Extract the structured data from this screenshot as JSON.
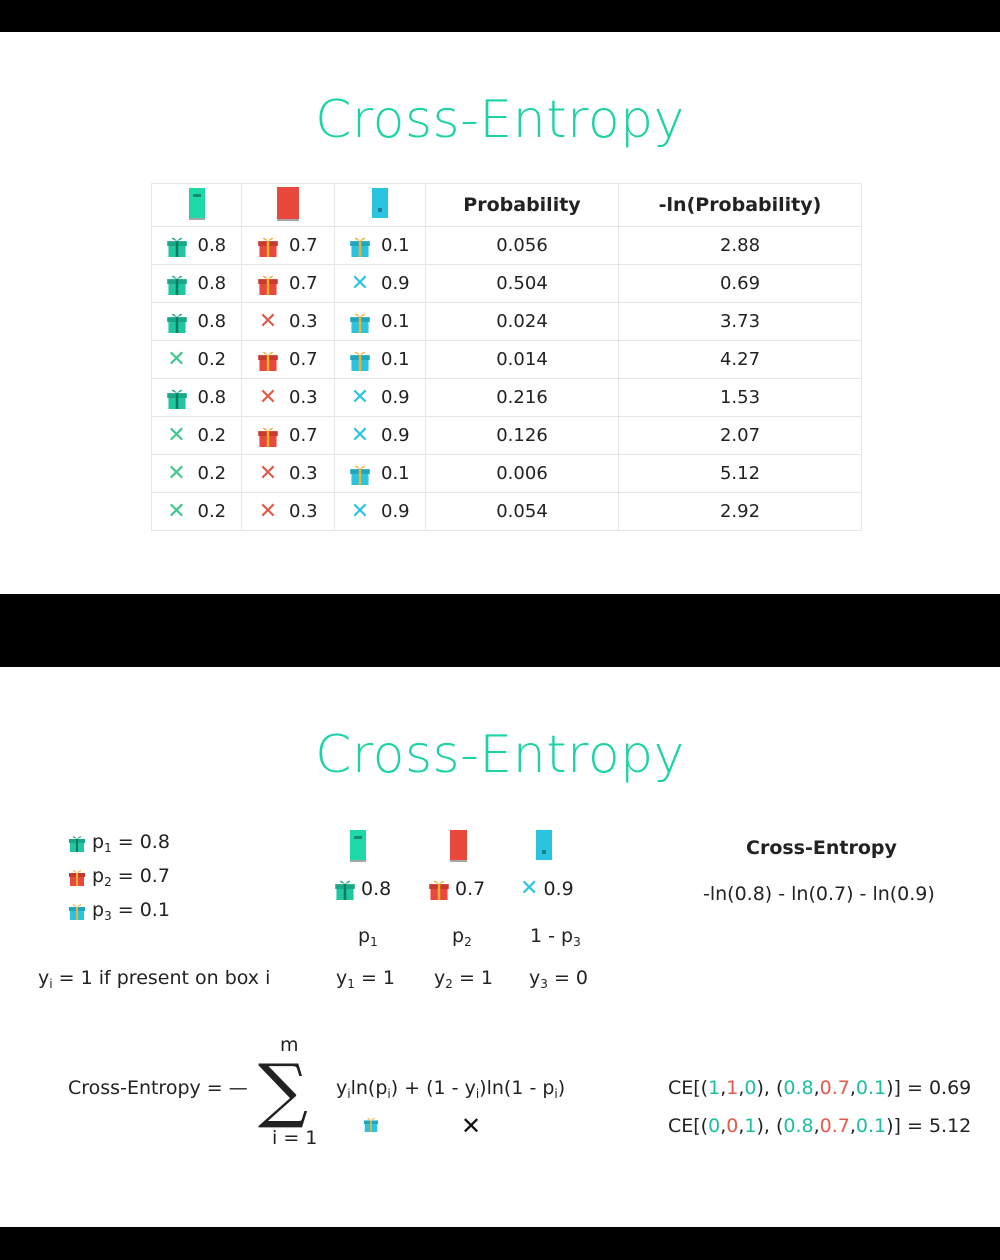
{
  "slide1": {
    "title": "Cross-Entropy",
    "headers": {
      "prob": "Probability",
      "ln": "-ln(Probability)"
    },
    "rows": [
      {
        "a": "0.8",
        "a_icon": "gift-icon",
        "b": "0.7",
        "b_icon": "gift-icon",
        "c": "0.1",
        "c_icon": "gift-icon",
        "prob": "0.056",
        "ln": "2.88"
      },
      {
        "a": "0.8",
        "a_icon": "gift-icon",
        "b": "0.7",
        "b_icon": "gift-icon",
        "c": "0.9",
        "c_icon": "x-icon",
        "prob": "0.504",
        "ln": "0.69"
      },
      {
        "a": "0.8",
        "a_icon": "gift-icon",
        "b": "0.3",
        "b_icon": "x-icon",
        "c": "0.1",
        "c_icon": "gift-icon",
        "prob": "0.024",
        "ln": "3.73"
      },
      {
        "a": "0.2",
        "a_icon": "x-icon",
        "b": "0.7",
        "b_icon": "gift-icon",
        "c": "0.1",
        "c_icon": "gift-icon",
        "prob": "0.014",
        "ln": "4.27"
      },
      {
        "a": "0.8",
        "a_icon": "gift-icon",
        "b": "0.3",
        "b_icon": "x-icon",
        "c": "0.9",
        "c_icon": "x-icon",
        "prob": "0.216",
        "ln": "1.53"
      },
      {
        "a": "0.2",
        "a_icon": "x-icon",
        "b": "0.7",
        "b_icon": "gift-icon",
        "c": "0.9",
        "c_icon": "x-icon",
        "prob": "0.126",
        "ln": "2.07"
      },
      {
        "a": "0.2",
        "a_icon": "x-icon",
        "b": "0.3",
        "b_icon": "x-icon",
        "c": "0.1",
        "c_icon": "gift-icon",
        "prob": "0.006",
        "ln": "5.12"
      },
      {
        "a": "0.2",
        "a_icon": "x-icon",
        "b": "0.3",
        "b_icon": "x-icon",
        "c": "0.9",
        "c_icon": "x-icon",
        "prob": "0.054",
        "ln": "2.92"
      }
    ]
  },
  "slide2": {
    "title": "Cross-Entropy",
    "p1_label": "p",
    "p1_sub": "1",
    "p1_value": "= 0.8",
    "p2_label": "p",
    "p2_sub": "2",
    "p2_value": "= 0.7",
    "p3_label": "p",
    "p3_sub": "3",
    "p3_value": "= 0.1",
    "yi_def": {
      "y": "y",
      "sub": "i",
      "rest": "= 1 if present on box i"
    },
    "door_values": [
      "0.8",
      "0.7",
      "0.9"
    ],
    "p_labels": [
      {
        "t": "p",
        "s": "1"
      },
      {
        "t": "p",
        "s": "2"
      },
      {
        "pre": "1 - p",
        "s": "3"
      }
    ],
    "y_labels": [
      {
        "t": "y",
        "s": "1",
        "v": "= 1"
      },
      {
        "t": "y",
        "s": "2",
        "v": "= 1"
      },
      {
        "t": "y",
        "s": "3",
        "v": "= 0"
      }
    ],
    "ce_heading": "Cross-Entropy",
    "ce_expr": "-ln(0.8) - ln(0.7) - ln(0.9)",
    "formula_lhs": "Cross-Entropy = —",
    "sigma_top": "m",
    "sigma_bottom": "i = 1",
    "ex1": {
      "pre": "CE[(",
      "y": [
        "1",
        "1",
        "0"
      ],
      "mid": "), (",
      "p": [
        "0.8",
        "0.7",
        "0.1"
      ],
      "post": ")] = 0.69"
    },
    "ex2": {
      "pre": "CE[(",
      "y": [
        "0",
        "0",
        "1"
      ],
      "mid": "), (",
      "p": [
        "0.8",
        "0.7",
        "0.1"
      ],
      "post": ")] = 5.12"
    }
  },
  "colors": {
    "title": "#1bd3a4",
    "door1": "#1fd8a8",
    "door2": "#e8493c",
    "door3": "#2bc4e0",
    "x": "#e45a4a",
    "x_green": "#3dc98a"
  }
}
